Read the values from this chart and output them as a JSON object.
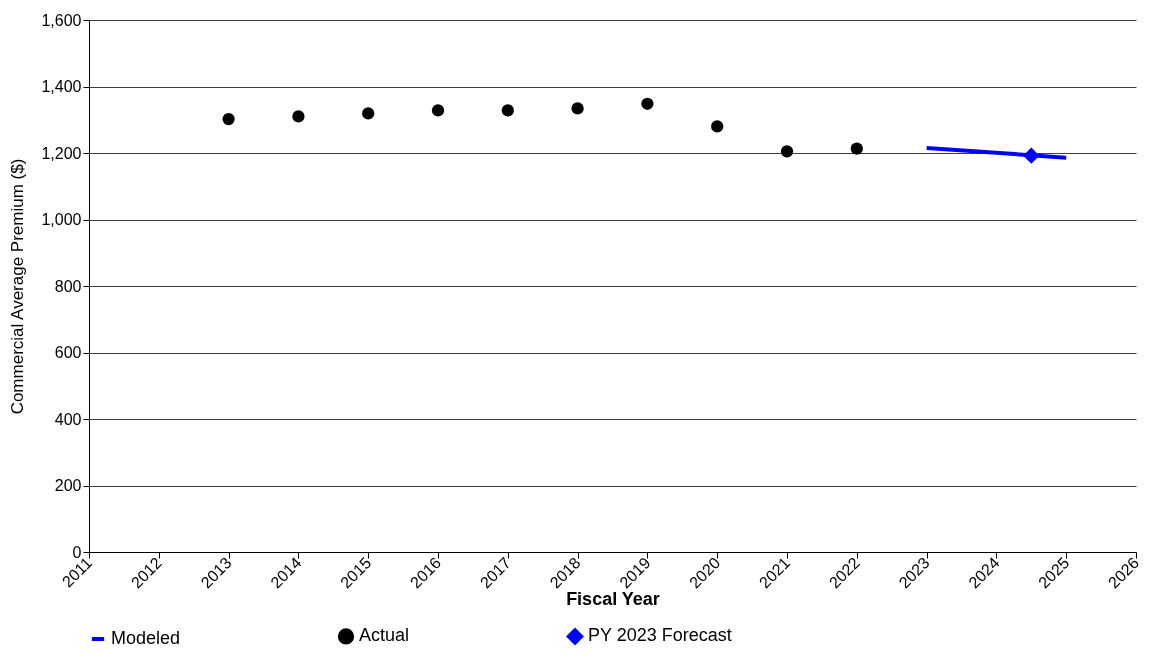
{
  "chart_data": {
    "type": "scatter",
    "xlabel": "Fiscal Year",
    "ylabel": "Commercial Average Premium ($)",
    "xlim": [
      2011,
      2026
    ],
    "xticks": [
      2011,
      2012,
      2013,
      2014,
      2015,
      2016,
      2017,
      2018,
      2019,
      2020,
      2021,
      2022,
      2023,
      2024,
      2025,
      2026
    ],
    "ylim": [
      0,
      1600
    ],
    "yticks": [
      0,
      200,
      400,
      600,
      800,
      {
        "value": 1000,
        "label": "1,000"
      },
      {
        "value": 1200,
        "label": "1,200"
      },
      {
        "value": 1400,
        "label": "1,400"
      },
      {
        "value": 1600,
        "label": "1,600"
      }
    ],
    "grid": "y",
    "legend": "bottom",
    "series": [
      {
        "name": "Modeled",
        "type": "line",
        "color": "#0000ff",
        "x": [
          2023,
          2025
        ],
        "values": [
          1215,
          1186
        ]
      },
      {
        "name": "Actual",
        "type": "scatter",
        "marker": "circle",
        "color": "#000000",
        "x": [
          2013,
          2014,
          2015,
          2016,
          2017,
          2018,
          2019,
          2020,
          2021,
          2022
        ],
        "values": [
          1302,
          1310,
          1319,
          1328,
          1328,
          1334,
          1348,
          1280,
          1205,
          1213
        ]
      },
      {
        "name": "PY 2023 Forecast",
        "type": "scatter",
        "marker": "diamond",
        "color": "#0000ff",
        "x": [
          2024.5
        ],
        "values": [
          1192
        ]
      }
    ]
  }
}
